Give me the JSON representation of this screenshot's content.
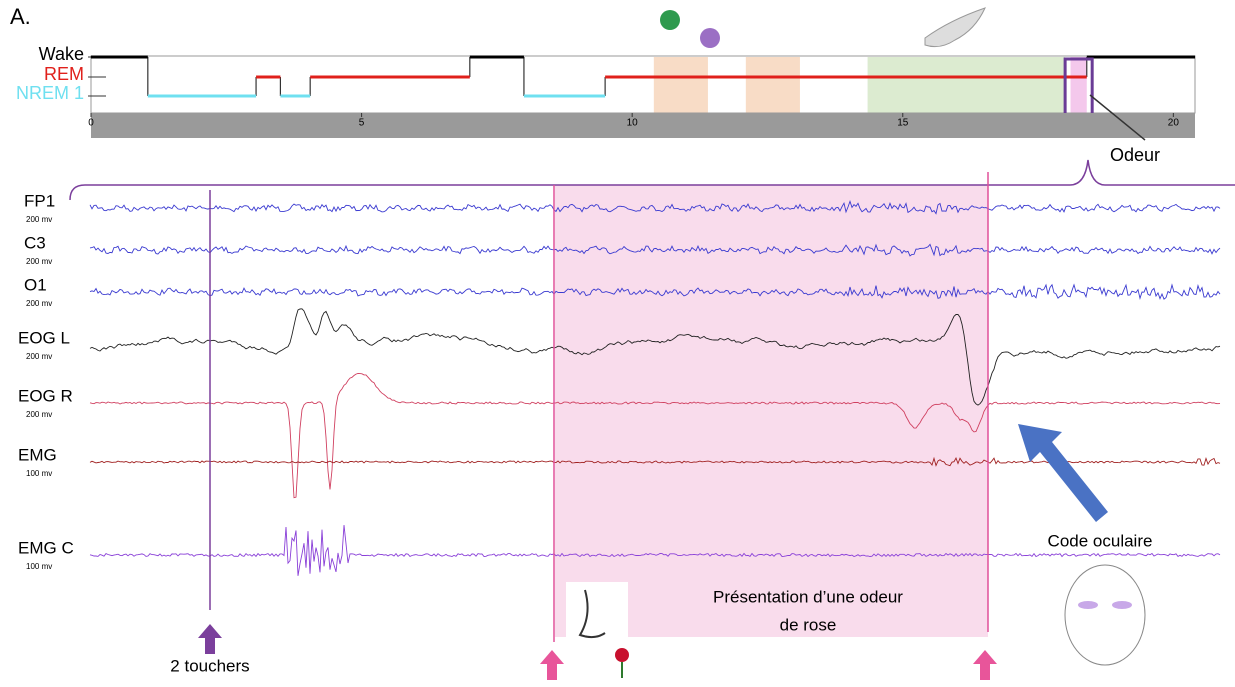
{
  "panel": "A.",
  "hypnogram": {
    "xlim": [
      0,
      20.4
    ],
    "xticks": [
      0,
      5,
      10,
      15,
      20
    ],
    "stages": [
      {
        "label": "Wake",
        "color": "#000000",
        "intervals": [
          [
            0,
            1.05
          ],
          [
            7.0,
            8.0
          ],
          [
            18.4,
            20.4
          ]
        ]
      },
      {
        "label": "REM",
        "color": "#e0201b",
        "intervals": [
          [
            3.05,
            3.5
          ],
          [
            4.05,
            7.0
          ],
          [
            9.5,
            18.4
          ]
        ]
      },
      {
        "label": "NREM 1",
        "color": "#6fe0f0",
        "intervals": [
          [
            1.05,
            3.05
          ],
          [
            3.5,
            4.05
          ],
          [
            8.0,
            9.5
          ]
        ]
      }
    ],
    "events": [
      {
        "color": "#f8dcc6",
        "start": 10.4,
        "end": 11.4
      },
      {
        "color": "#f8dcc6",
        "start": 12.1,
        "end": 13.1
      },
      {
        "color": "#dcebd0",
        "start": 14.35,
        "end": 18.0
      },
      {
        "color": "#f4c8ec",
        "start": 18.1,
        "end": 18.4
      }
    ],
    "odor_window": [
      18.0,
      18.5
    ],
    "odor_label": "Odeur"
  },
  "channels": [
    {
      "name": "FP1",
      "scale": "200 mv"
    },
    {
      "name": "C3",
      "scale": "200 mv"
    },
    {
      "name": "O1",
      "scale": "200 mv"
    },
    {
      "name": "EOG L",
      "scale": "200 mv"
    },
    {
      "name": "EOG R",
      "scale": "200 mv"
    },
    {
      "name": "EMG",
      "scale": "100 mv"
    },
    {
      "name": "EMG C",
      "scale": "100 mv"
    }
  ],
  "annotations": {
    "touches": "2 touchers",
    "presentation": [
      "Présentation d’une odeur",
      "de rose"
    ],
    "eye_code": "Code oculaire"
  }
}
